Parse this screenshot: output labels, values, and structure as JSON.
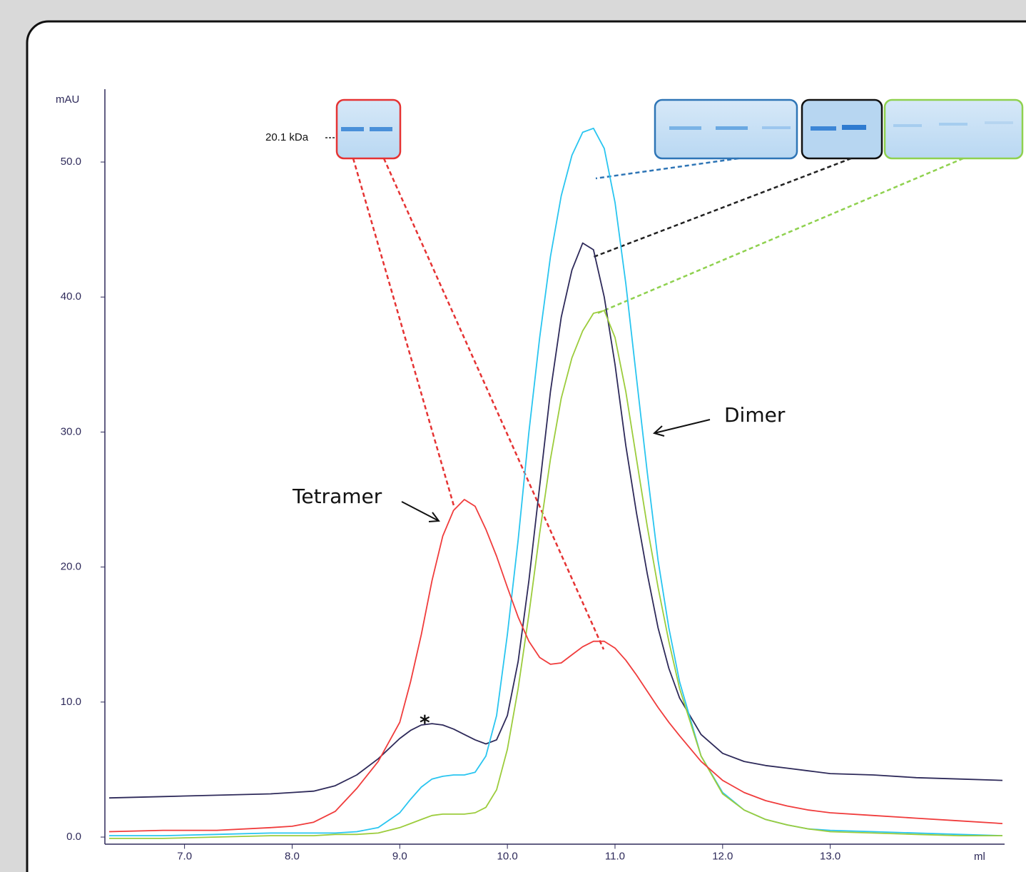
{
  "chart_data": {
    "type": "line",
    "y_label": "mAU",
    "x_label": "ml",
    "xlim": [
      6.26,
      14.62
    ],
    "ylim": [
      -0.5,
      55.5
    ],
    "xticks": [
      {
        "value": 7,
        "label": "7.0"
      },
      {
        "value": 8,
        "label": "8.0"
      },
      {
        "value": 9,
        "label": "9.0"
      },
      {
        "value": 10,
        "label": "10.0"
      },
      {
        "value": 11,
        "label": "11.0"
      },
      {
        "value": 12,
        "label": "12.0"
      },
      {
        "value": 13,
        "label": "13.0"
      }
    ],
    "yticks": [
      {
        "value": 0,
        "label": "0.0"
      },
      {
        "value": 10,
        "label": "10.0"
      },
      {
        "value": 20,
        "label": "20.0"
      },
      {
        "value": 30,
        "label": "30.0"
      },
      {
        "value": 40,
        "label": "40.0"
      },
      {
        "value": 50,
        "label": "50.0"
      }
    ],
    "annotations": [
      "Tetramer",
      "Dimer",
      "*",
      "20.1 kDa"
    ],
    "x": [
      6.3,
      6.8,
      7.3,
      7.8,
      8.0,
      8.2,
      8.4,
      8.6,
      8.8,
      9.0,
      9.1,
      9.2,
      9.3,
      9.4,
      9.5,
      9.6,
      9.7,
      9.8,
      9.9,
      10.0,
      10.1,
      10.2,
      10.3,
      10.4,
      10.5,
      10.6,
      10.7,
      10.8,
      10.9,
      11.0,
      11.1,
      11.2,
      11.3,
      11.4,
      11.5,
      11.6,
      11.8,
      12.0,
      12.2,
      12.4,
      12.6,
      12.8,
      13.0,
      13.4,
      13.8,
      14.2,
      14.6
    ],
    "series": [
      {
        "color": "#2e2a5a",
        "values": [
          2.9,
          3.0,
          3.1,
          3.2,
          3.3,
          3.4,
          3.8,
          4.6,
          5.8,
          7.3,
          7.9,
          8.3,
          8.4,
          8.3,
          8.0,
          7.6,
          7.2,
          6.9,
          7.2,
          9.0,
          13,
          19,
          26,
          33,
          38.5,
          42,
          44,
          43.5,
          40,
          35,
          29,
          24,
          19.5,
          15.5,
          12.5,
          10.3,
          7.6,
          6.2,
          5.6,
          5.3,
          5.1,
          4.9,
          4.7,
          4.6,
          4.4,
          4.3,
          4.2
        ]
      },
      {
        "color": "#29c5f0",
        "values": [
          0.1,
          0.1,
          0.2,
          0.3,
          0.3,
          0.3,
          0.3,
          0.4,
          0.7,
          1.8,
          2.8,
          3.7,
          4.3,
          4.5,
          4.6,
          4.6,
          4.8,
          6.0,
          9.0,
          15,
          22,
          30,
          37,
          43,
          47.5,
          50.5,
          52.2,
          52.5,
          51,
          47,
          41,
          34,
          27,
          20.5,
          15.5,
          11.5,
          6.0,
          3.3,
          2.0,
          1.3,
          0.9,
          0.6,
          0.5,
          0.4,
          0.3,
          0.2,
          0.1
        ]
      },
      {
        "color": "#9ccc3c",
        "values": [
          -0.1,
          -0.1,
          0.0,
          0.1,
          0.1,
          0.1,
          0.2,
          0.2,
          0.3,
          0.7,
          1.0,
          1.3,
          1.6,
          1.7,
          1.7,
          1.7,
          1.8,
          2.2,
          3.5,
          6.5,
          11,
          16.5,
          22.5,
          28,
          32.5,
          35.5,
          37.5,
          38.8,
          39,
          37,
          33,
          28,
          23,
          18.5,
          14.5,
          11,
          6,
          3.2,
          2.0,
          1.3,
          0.9,
          0.6,
          0.4,
          0.3,
          0.2,
          0.1,
          0.1
        ]
      },
      {
        "color": "#f03c3c",
        "values": [
          0.4,
          0.5,
          0.5,
          0.7,
          0.8,
          1.1,
          1.9,
          3.6,
          5.6,
          8.5,
          11.5,
          15,
          19,
          22.3,
          24.2,
          25.0,
          24.5,
          22.8,
          20.8,
          18.5,
          16.3,
          14.5,
          13.3,
          12.8,
          12.9,
          13.5,
          14.1,
          14.5,
          14.5,
          14.0,
          13.1,
          12.0,
          10.8,
          9.6,
          8.5,
          7.5,
          5.6,
          4.2,
          3.3,
          2.7,
          2.3,
          2.0,
          1.8,
          1.6,
          1.4,
          1.2,
          1.0
        ]
      }
    ]
  }
}
